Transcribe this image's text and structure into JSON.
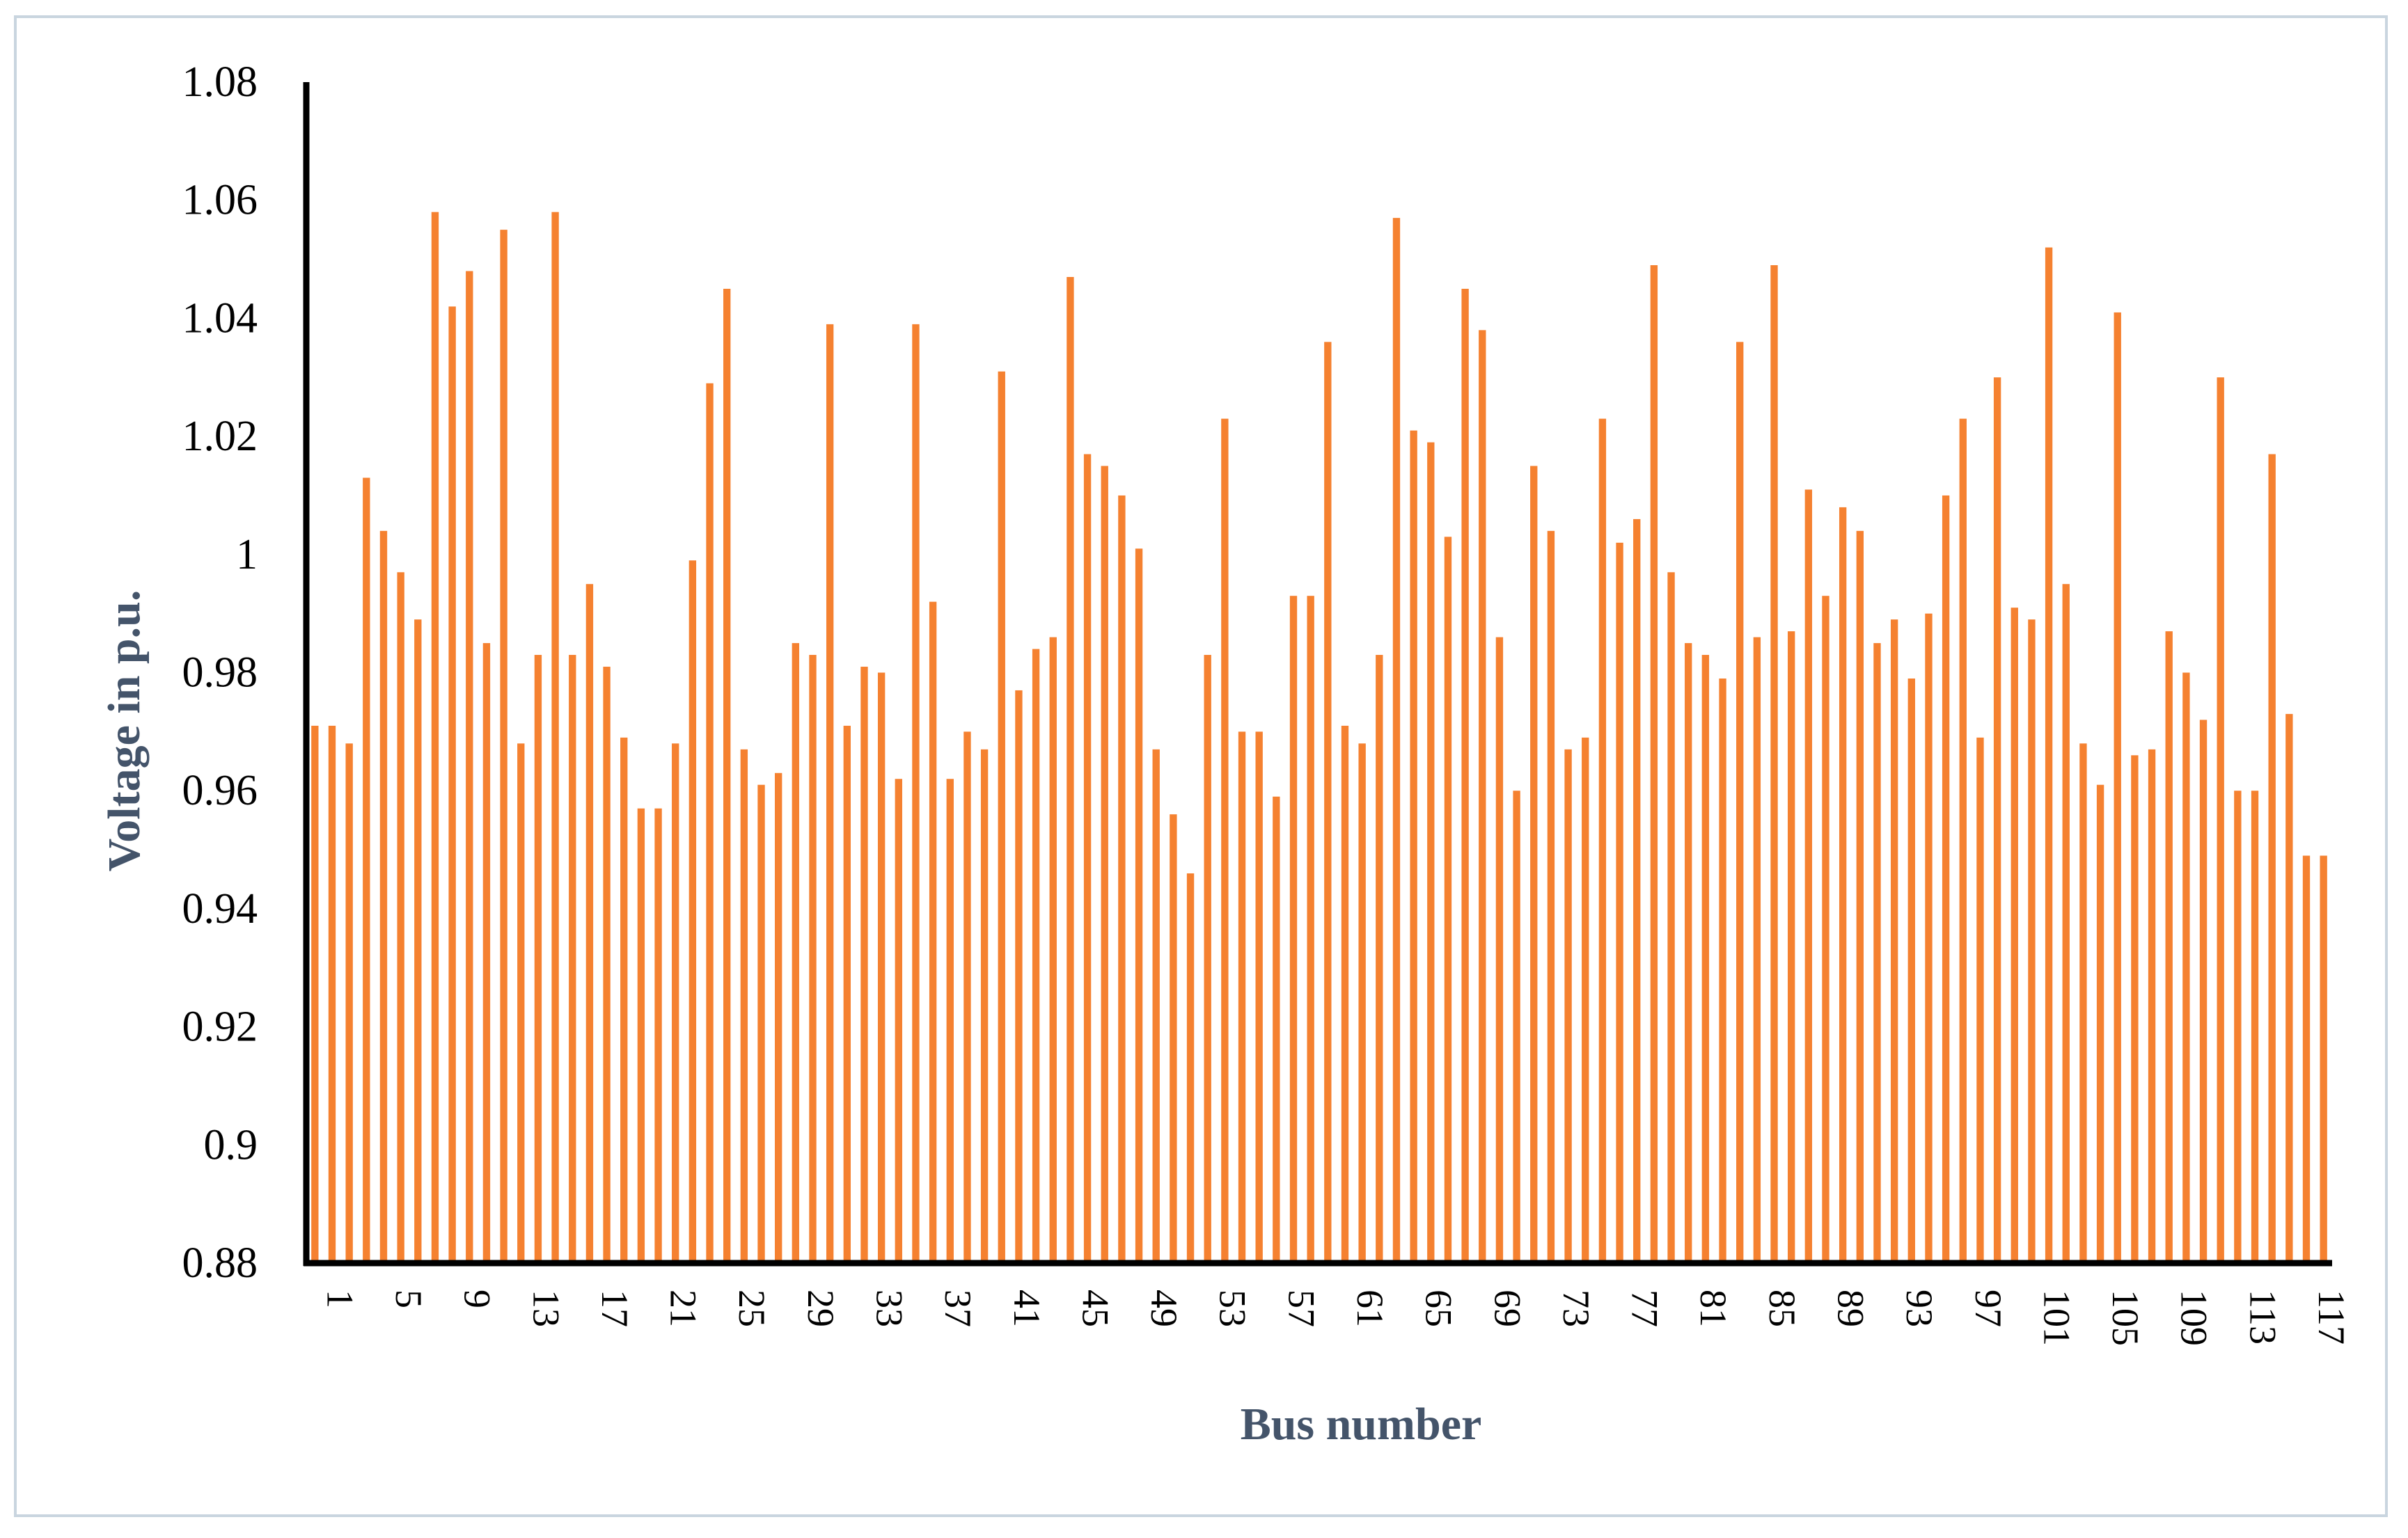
{
  "chart_data": {
    "type": "bar",
    "xlabel": "Bus number",
    "ylabel": "Voltage in p.u.",
    "ylim": [
      0.88,
      1.08
    ],
    "yticks": [
      "0.88",
      "0.9",
      "0.92",
      "0.94",
      "0.96",
      "0.98",
      "1",
      "1.02",
      "1.04",
      "1.06",
      "1.08"
    ],
    "x": [
      1,
      2,
      3,
      4,
      5,
      6,
      7,
      8,
      9,
      10,
      11,
      12,
      13,
      14,
      15,
      16,
      17,
      18,
      19,
      20,
      21,
      22,
      23,
      24,
      25,
      26,
      27,
      28,
      29,
      30,
      31,
      32,
      33,
      34,
      35,
      36,
      37,
      38,
      39,
      40,
      41,
      42,
      43,
      44,
      45,
      46,
      47,
      48,
      49,
      50,
      51,
      52,
      53,
      54,
      55,
      56,
      57,
      58,
      59,
      60,
      61,
      62,
      63,
      64,
      65,
      66,
      67,
      68,
      69,
      70,
      71,
      72,
      73,
      74,
      75,
      76,
      77,
      78,
      79,
      80,
      81,
      82,
      83,
      84,
      85,
      86,
      87,
      88,
      89,
      90,
      91,
      92,
      93,
      94,
      95,
      96,
      97,
      98,
      99,
      100,
      101,
      102,
      103,
      104,
      105,
      106,
      107,
      108,
      109,
      110,
      111,
      112,
      113,
      114,
      115,
      116,
      117,
      118
    ],
    "xtick_labels": [
      "1",
      "5",
      "9",
      "13",
      "17",
      "21",
      "25",
      "29",
      "33",
      "37",
      "41",
      "45",
      "49",
      "53",
      "57",
      "61",
      "65",
      "69",
      "73",
      "77",
      "81",
      "85",
      "89",
      "93",
      "97",
      "101",
      "105",
      "109",
      "113",
      "117"
    ],
    "values": [
      0.971,
      0.971,
      0.968,
      1.013,
      1.004,
      0.997,
      0.989,
      1.058,
      1.042,
      1.048,
      0.985,
      1.055,
      0.968,
      0.983,
      1.058,
      0.983,
      0.995,
      0.981,
      0.969,
      0.957,
      0.957,
      0.968,
      0.999,
      1.029,
      1.045,
      0.967,
      0.961,
      0.963,
      0.985,
      0.983,
      1.039,
      0.971,
      0.981,
      0.98,
      0.962,
      1.039,
      0.992,
      0.962,
      0.97,
      0.967,
      1.031,
      0.977,
      0.984,
      0.986,
      1.047,
      1.017,
      1.015,
      1.01,
      1.001,
      0.967,
      0.956,
      0.946,
      0.983,
      1.023,
      0.97,
      0.97,
      0.959,
      0.993,
      0.993,
      1.036,
      0.971,
      0.968,
      0.983,
      1.057,
      1.021,
      1.019,
      1.003,
      1.045,
      1.038,
      0.986,
      0.96,
      1.015,
      1.004,
      0.967,
      0.969,
      1.023,
      1.002,
      1.006,
      1.049,
      0.997,
      0.985,
      0.983,
      0.979,
      1.036,
      0.986,
      1.049,
      0.987,
      1.011,
      0.993,
      1.008,
      1.004,
      0.985,
      0.989,
      0.979,
      0.99,
      1.01,
      1.023,
      0.969,
      1.03,
      0.991,
      0.989,
      1.052,
      0.995,
      0.968,
      0.961,
      1.041,
      0.966,
      0.967,
      0.987,
      0.98,
      0.972,
      1.03,
      0.96,
      0.96,
      1.017,
      0.973,
      0.949,
      0.949
    ],
    "colors": {
      "bar": "#f58130",
      "axis": "#000000",
      "axis_title": "#44546a",
      "border": "#c9d5df"
    }
  }
}
